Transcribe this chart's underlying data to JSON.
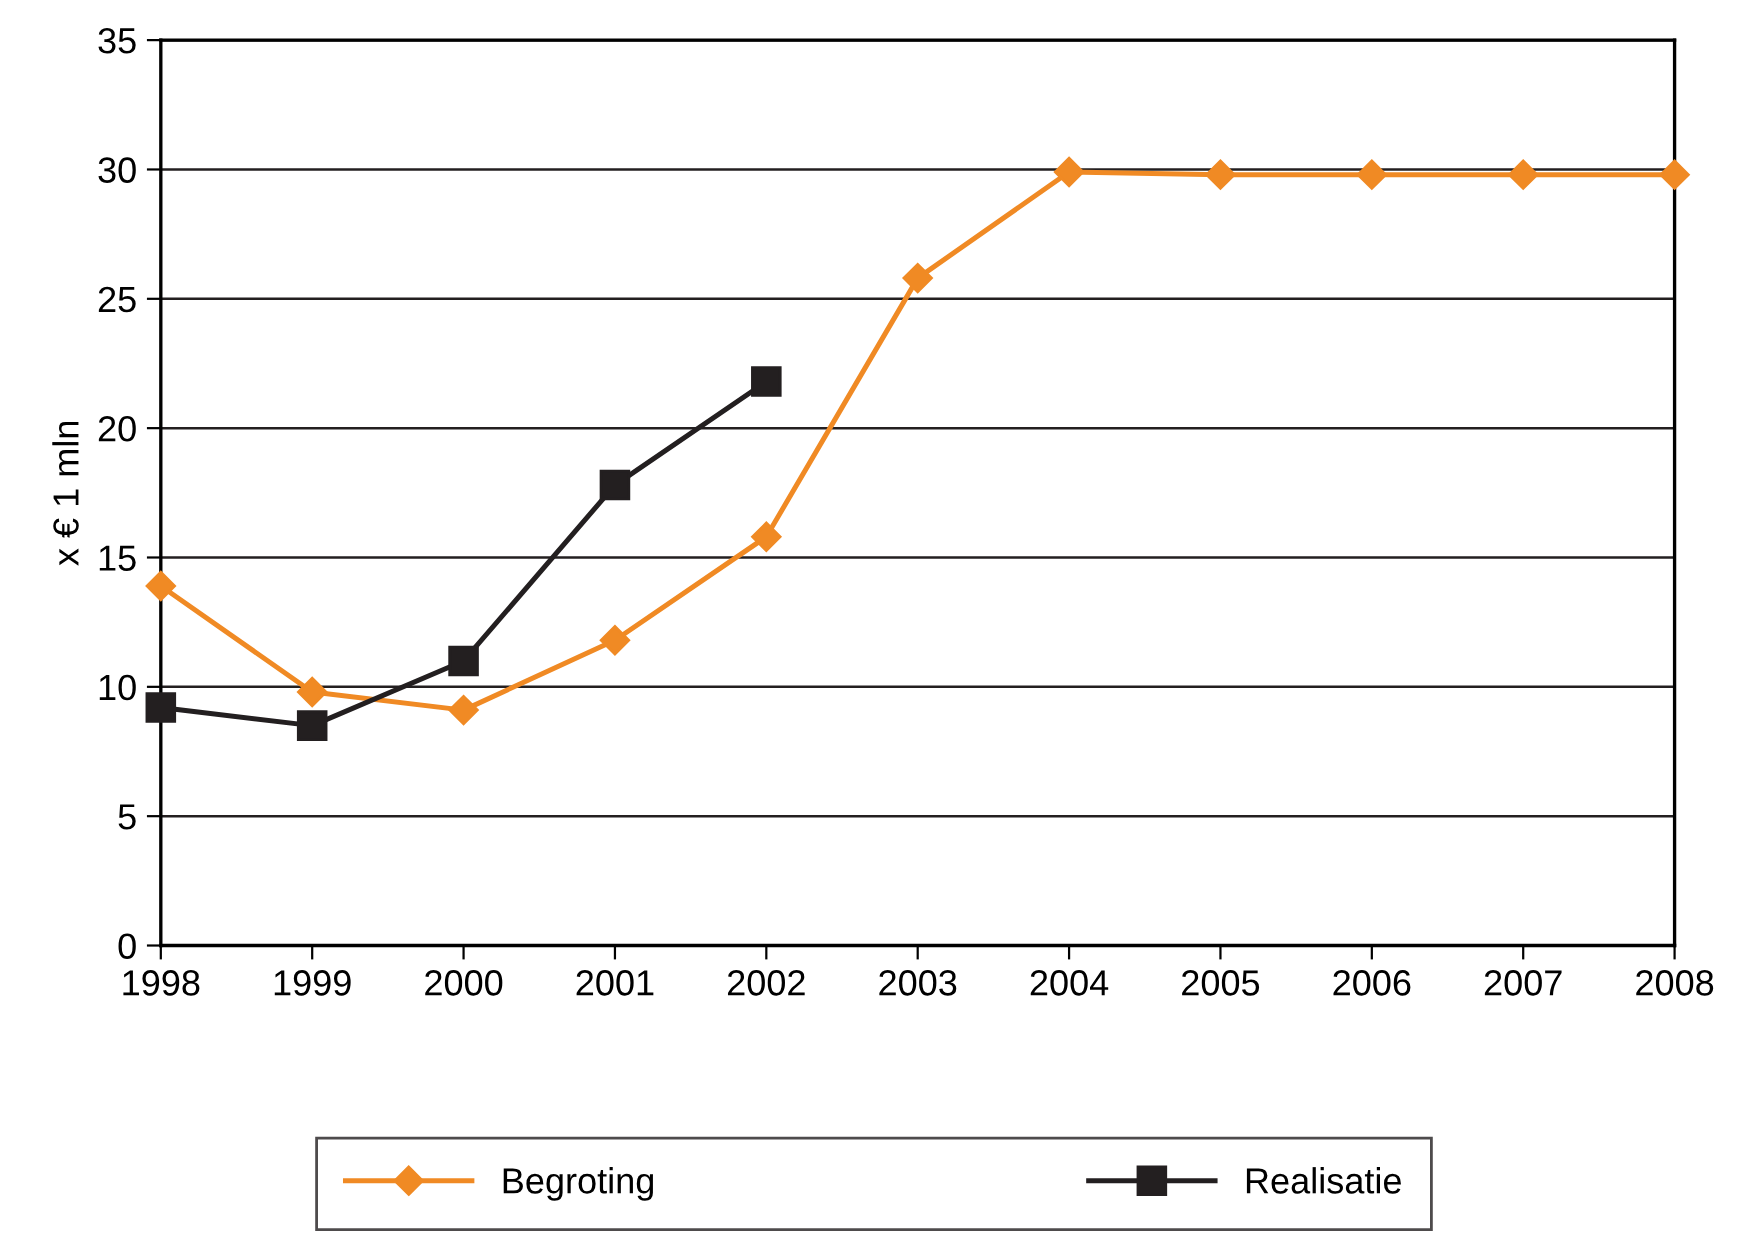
{
  "chart_data": {
    "type": "line",
    "ylabel": "x € 1 mln",
    "x": [
      1998,
      1999,
      2000,
      2001,
      2002,
      2003,
      2004,
      2005,
      2006,
      2007,
      2008
    ],
    "series": [
      {
        "name": "Begroting",
        "color": "#f08a24",
        "marker": "diamond",
        "values": [
          13.9,
          9.8,
          9.1,
          11.8,
          15.8,
          25.8,
          29.9,
          29.8,
          29.8,
          29.8,
          29.8
        ]
      },
      {
        "name": "Realisatie",
        "color": "#231f20",
        "marker": "square",
        "values": [
          9.2,
          8.5,
          11.0,
          17.8,
          21.8,
          null,
          null,
          null,
          null,
          null,
          null
        ]
      }
    ],
    "xlim": [
      1998,
      2008
    ],
    "xticks": [
      1998,
      1999,
      2000,
      2001,
      2002,
      2003,
      2004,
      2005,
      2006,
      2007,
      2008
    ],
    "ylim": [
      0,
      35
    ],
    "yticks": [
      0,
      5,
      10,
      15,
      20,
      25,
      30,
      35
    ],
    "grid": "y",
    "legend": "bottom",
    "line_style": "solid"
  }
}
